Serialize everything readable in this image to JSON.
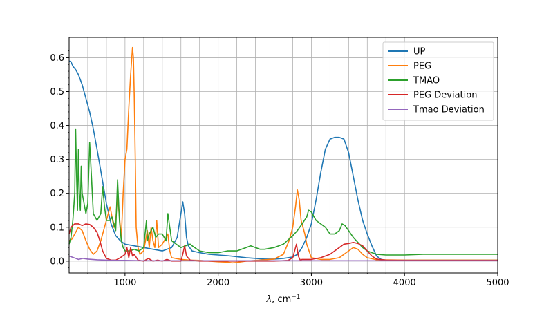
{
  "chart_data": {
    "type": "line",
    "title": "",
    "xlabel_main": "λ",
    "xlabel_unit": ", cm",
    "xlabel_exp": "−1",
    "ylabel": "",
    "xlim": [
      400,
      5000
    ],
    "ylim": [
      -0.035,
      0.66
    ],
    "grid": true,
    "legend_position": "top-right",
    "x_ticks": [
      1000,
      2000,
      3000,
      4000,
      5000
    ],
    "x_tick_labels": [
      "1000",
      "2000",
      "3000",
      "4000",
      "5000"
    ],
    "y_ticks": [
      0.0,
      0.1,
      0.2,
      0.3,
      0.4,
      0.5,
      0.6
    ],
    "y_tick_labels": [
      "0.0",
      "0.1",
      "0.2",
      "0.3",
      "0.4",
      "0.5",
      "0.6"
    ],
    "x_grid_minor": [
      600,
      800,
      1200,
      1400,
      1600,
      1800,
      2200,
      2400,
      2600,
      2800,
      3200,
      3400,
      3600,
      3800
    ],
    "series": [
      {
        "name": "UP",
        "color": "#1f77b4",
        "x": [
          400,
          420,
          440,
          470,
          500,
          540,
          580,
          620,
          660,
          700,
          750,
          800,
          850,
          900,
          950,
          1000,
          1100,
          1200,
          1300,
          1400,
          1500,
          1560,
          1600,
          1620,
          1640,
          1660,
          1680,
          1720,
          1800,
          1900,
          2000,
          2100,
          2200,
          2300,
          2400,
          2500,
          2600,
          2700,
          2800,
          2850,
          2900,
          2950,
          3000,
          3050,
          3100,
          3150,
          3200,
          3250,
          3300,
          3350,
          3400,
          3450,
          3500,
          3550,
          3600,
          3650,
          3700,
          3750,
          3800,
          4000,
          4500,
          5000
        ],
        "y": [
          0.59,
          0.588,
          0.575,
          0.565,
          0.55,
          0.52,
          0.48,
          0.44,
          0.39,
          0.33,
          0.25,
          0.17,
          0.11,
          0.075,
          0.06,
          0.05,
          0.045,
          0.04,
          0.035,
          0.03,
          0.04,
          0.07,
          0.14,
          0.175,
          0.14,
          0.07,
          0.045,
          0.03,
          0.025,
          0.02,
          0.018,
          0.016,
          0.013,
          0.01,
          0.008,
          0.006,
          0.006,
          0.008,
          0.012,
          0.02,
          0.04,
          0.07,
          0.11,
          0.18,
          0.26,
          0.33,
          0.36,
          0.365,
          0.365,
          0.36,
          0.32,
          0.25,
          0.18,
          0.12,
          0.08,
          0.045,
          0.015,
          0.005,
          0.003,
          0.003,
          0.003,
          0.003
        ]
      },
      {
        "name": "PEG",
        "color": "#ff7f0e",
        "x": [
          400,
          430,
          460,
          500,
          540,
          580,
          620,
          660,
          700,
          740,
          780,
          820,
          840,
          860,
          880,
          900,
          920,
          940,
          960,
          980,
          1000,
          1020,
          1040,
          1060,
          1080,
          1090,
          1100,
          1110,
          1120,
          1140,
          1160,
          1200,
          1240,
          1260,
          1280,
          1300,
          1320,
          1340,
          1360,
          1400,
          1440,
          1460,
          1480,
          1500,
          1600,
          1700,
          1800,
          1900,
          2000,
          2100,
          2150,
          2200,
          2250,
          2300,
          2400,
          2500,
          2600,
          2700,
          2760,
          2800,
          2830,
          2850,
          2870,
          2890,
          2910,
          2930,
          2950,
          3000,
          3100,
          3200,
          3300,
          3400,
          3450,
          3500,
          3550,
          3600,
          3700,
          4000,
          4500,
          5000
        ],
        "y": [
          0.06,
          0.065,
          0.08,
          0.1,
          0.09,
          0.06,
          0.035,
          0.02,
          0.03,
          0.06,
          0.1,
          0.14,
          0.16,
          0.13,
          0.1,
          0.12,
          0.19,
          0.13,
          0.07,
          0.2,
          0.3,
          0.33,
          0.45,
          0.55,
          0.63,
          0.6,
          0.48,
          0.3,
          0.1,
          0.04,
          0.02,
          0.03,
          0.09,
          0.04,
          0.1,
          0.06,
          0.04,
          0.12,
          0.04,
          0.05,
          0.07,
          0.08,
          0.03,
          0.01,
          0.005,
          0.003,
          0.002,
          0.0,
          -0.002,
          -0.003,
          -0.005,
          -0.004,
          -0.002,
          0.0,
          0.002,
          0.004,
          0.006,
          0.02,
          0.06,
          0.1,
          0.16,
          0.21,
          0.18,
          0.12,
          0.1,
          0.08,
          0.05,
          0.01,
          0.005,
          0.005,
          0.01,
          0.03,
          0.04,
          0.035,
          0.02,
          0.01,
          0.004,
          0.003,
          0.003,
          0.003
        ]
      },
      {
        "name": "TMAO",
        "color": "#2ca02c",
        "x": [
          400,
          420,
          440,
          460,
          470,
          480,
          490,
          500,
          510,
          520,
          530,
          540,
          560,
          580,
          600,
          620,
          640,
          660,
          700,
          740,
          760,
          780,
          800,
          840,
          860,
          880,
          900,
          920,
          940,
          960,
          980,
          1000,
          1050,
          1100,
          1150,
          1200,
          1230,
          1240,
          1260,
          1300,
          1330,
          1360,
          1400,
          1440,
          1460,
          1480,
          1500,
          1600,
          1700,
          1720,
          1800,
          1900,
          2000,
          2100,
          2200,
          2300,
          2350,
          2400,
          2450,
          2500,
          2600,
          2700,
          2800,
          2850,
          2900,
          2950,
          2970,
          3000,
          3050,
          3100,
          3150,
          3200,
          3250,
          3300,
          3330,
          3360,
          3400,
          3450,
          3500,
          3550,
          3600,
          3650,
          3700,
          3800,
          4000,
          4200,
          4500,
          4800,
          5000
        ],
        "y": [
          0.05,
          0.07,
          0.12,
          0.2,
          0.39,
          0.25,
          0.15,
          0.33,
          0.2,
          0.15,
          0.28,
          0.2,
          0.17,
          0.14,
          0.17,
          0.35,
          0.25,
          0.14,
          0.12,
          0.14,
          0.22,
          0.16,
          0.12,
          0.12,
          0.13,
          0.11,
          0.09,
          0.24,
          0.12,
          0.06,
          0.04,
          0.03,
          0.03,
          0.035,
          0.03,
          0.04,
          0.12,
          0.06,
          0.08,
          0.1,
          0.07,
          0.08,
          0.08,
          0.06,
          0.14,
          0.1,
          0.06,
          0.04,
          0.05,
          0.045,
          0.03,
          0.025,
          0.025,
          0.03,
          0.03,
          0.04,
          0.045,
          0.04,
          0.035,
          0.035,
          0.04,
          0.05,
          0.075,
          0.09,
          0.11,
          0.13,
          0.15,
          0.145,
          0.12,
          0.11,
          0.1,
          0.08,
          0.08,
          0.09,
          0.11,
          0.105,
          0.09,
          0.07,
          0.055,
          0.04,
          0.03,
          0.025,
          0.02,
          0.018,
          0.018,
          0.02,
          0.02,
          0.02,
          0.02
        ]
      },
      {
        "name": "PEG Deviation",
        "color": "#d62728",
        "x": [
          400,
          420,
          440,
          460,
          500,
          540,
          580,
          620,
          660,
          700,
          730,
          760,
          800,
          850,
          900,
          950,
          1000,
          1020,
          1040,
          1060,
          1080,
          1100,
          1140,
          1200,
          1250,
          1300,
          1350,
          1400,
          1450,
          1500,
          1600,
          1620,
          1640,
          1660,
          1700,
          1800,
          2000,
          2200,
          2400,
          2600,
          2750,
          2800,
          2840,
          2860,
          2880,
          2900,
          3000,
          3100,
          3200,
          3300,
          3350,
          3400,
          3450,
          3500,
          3550,
          3600,
          3650,
          3700,
          3800,
          4000,
          4500,
          5000
        ],
        "y": [
          0.08,
          0.1,
          0.105,
          0.11,
          0.11,
          0.105,
          0.11,
          0.108,
          0.1,
          0.085,
          0.06,
          0.03,
          0.008,
          0.003,
          0.003,
          0.01,
          0.02,
          0.04,
          0.01,
          0.04,
          0.015,
          0.02,
          0.003,
          0.0,
          0.008,
          0.0,
          0.003,
          0.0,
          0.005,
          0.0,
          0.0,
          0.02,
          0.045,
          0.015,
          0.003,
          0.0,
          0.0,
          0.0,
          0.0,
          0.0,
          0.002,
          0.01,
          0.05,
          0.015,
          0.003,
          0.005,
          0.005,
          0.01,
          0.02,
          0.04,
          0.05,
          0.052,
          0.055,
          0.052,
          0.045,
          0.03,
          0.015,
          0.006,
          0.003,
          0.002,
          0.002,
          0.002
        ]
      },
      {
        "name": "Tmao Deviation",
        "color": "#9467bd",
        "x": [
          400,
          450,
          500,
          550,
          600,
          700,
          800,
          900,
          1000,
          1200,
          1500,
          2000,
          2500,
          3000,
          3500,
          4000,
          4500,
          5000
        ],
        "y": [
          0.015,
          0.01,
          0.005,
          0.008,
          0.006,
          0.004,
          0.003,
          0.002,
          0.002,
          0.001,
          0.001,
          0.001,
          0.001,
          0.001,
          0.001,
          0.001,
          0.001,
          0.001
        ]
      }
    ]
  }
}
